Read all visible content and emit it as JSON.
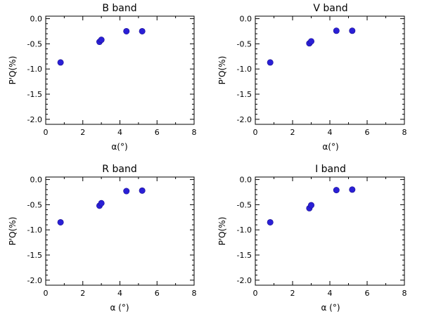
{
  "chart_data": [
    {
      "type": "scatter",
      "title": "B band",
      "xlabel": "α(°)",
      "ylabel": "P'Q(%)",
      "xlim": [
        0,
        8
      ],
      "ylim": [
        -2.1,
        0.05
      ],
      "xticks": [
        0,
        2,
        4,
        6,
        8
      ],
      "yticks": [
        0.0,
        -0.5,
        -1.0,
        -1.5,
        -2.0
      ],
      "xtick_labels": [
        "0",
        "2",
        "4",
        "6",
        "8"
      ],
      "ytick_labels": [
        "0.0",
        "-0.5",
        "-1.0",
        "-1.5",
        "-2.0"
      ],
      "grid": false,
      "x": [
        0.8,
        2.9,
        3.0,
        4.35,
        5.2
      ],
      "y": [
        -0.87,
        -0.46,
        -0.42,
        -0.25,
        -0.25
      ]
    },
    {
      "type": "scatter",
      "title": "V band",
      "xlabel": "α(°)",
      "ylabel": "P'Q(%)",
      "xlim": [
        0,
        8
      ],
      "ylim": [
        -2.1,
        0.05
      ],
      "xticks": [
        0,
        2,
        4,
        6,
        8
      ],
      "yticks": [
        0.0,
        -0.5,
        -1.0,
        -1.5,
        -2.0
      ],
      "xtick_labels": [
        "0",
        "2",
        "4",
        "6",
        "8"
      ],
      "ytick_labels": [
        "0.0",
        "-0.5",
        "-1.0",
        "-1.5",
        "-2.0"
      ],
      "grid": false,
      "x": [
        0.8,
        2.9,
        3.0,
        4.35,
        5.2
      ],
      "y": [
        -0.87,
        -0.49,
        -0.45,
        -0.24,
        -0.24
      ]
    },
    {
      "type": "scatter",
      "title": "R band",
      "xlabel": "α (°)",
      "ylabel": "P'Q(%)",
      "xlim": [
        0,
        8
      ],
      "ylim": [
        -2.1,
        0.05
      ],
      "xticks": [
        0,
        2,
        4,
        6,
        8
      ],
      "yticks": [
        0.0,
        -0.5,
        -1.0,
        -1.5,
        -2.0
      ],
      "xtick_labels": [
        "0",
        "2",
        "4",
        "6",
        "8"
      ],
      "ytick_labels": [
        "0.0",
        "-0.5",
        "-1.0",
        "-1.5",
        "-2.0"
      ],
      "grid": false,
      "x": [
        0.8,
        2.9,
        3.0,
        4.35,
        5.2
      ],
      "y": [
        -0.85,
        -0.52,
        -0.47,
        -0.23,
        -0.22
      ]
    },
    {
      "type": "scatter",
      "title": "I band",
      "xlabel": "α (°)",
      "ylabel": "P'Q(%)",
      "xlim": [
        0,
        8
      ],
      "ylim": [
        -2.1,
        0.05
      ],
      "xticks": [
        0,
        2,
        4,
        6,
        8
      ],
      "yticks": [
        0.0,
        -0.5,
        -1.0,
        -1.5,
        -2.0
      ],
      "xtick_labels": [
        "0",
        "2",
        "4",
        "6",
        "8"
      ],
      "ytick_labels": [
        "0.0",
        "-0.5",
        "-1.0",
        "-1.5",
        "-2.0"
      ],
      "grid": false,
      "x": [
        0.8,
        2.9,
        3.0,
        4.35,
        5.2
      ],
      "y": [
        -0.85,
        -0.57,
        -0.51,
        -0.21,
        -0.2
      ]
    }
  ]
}
